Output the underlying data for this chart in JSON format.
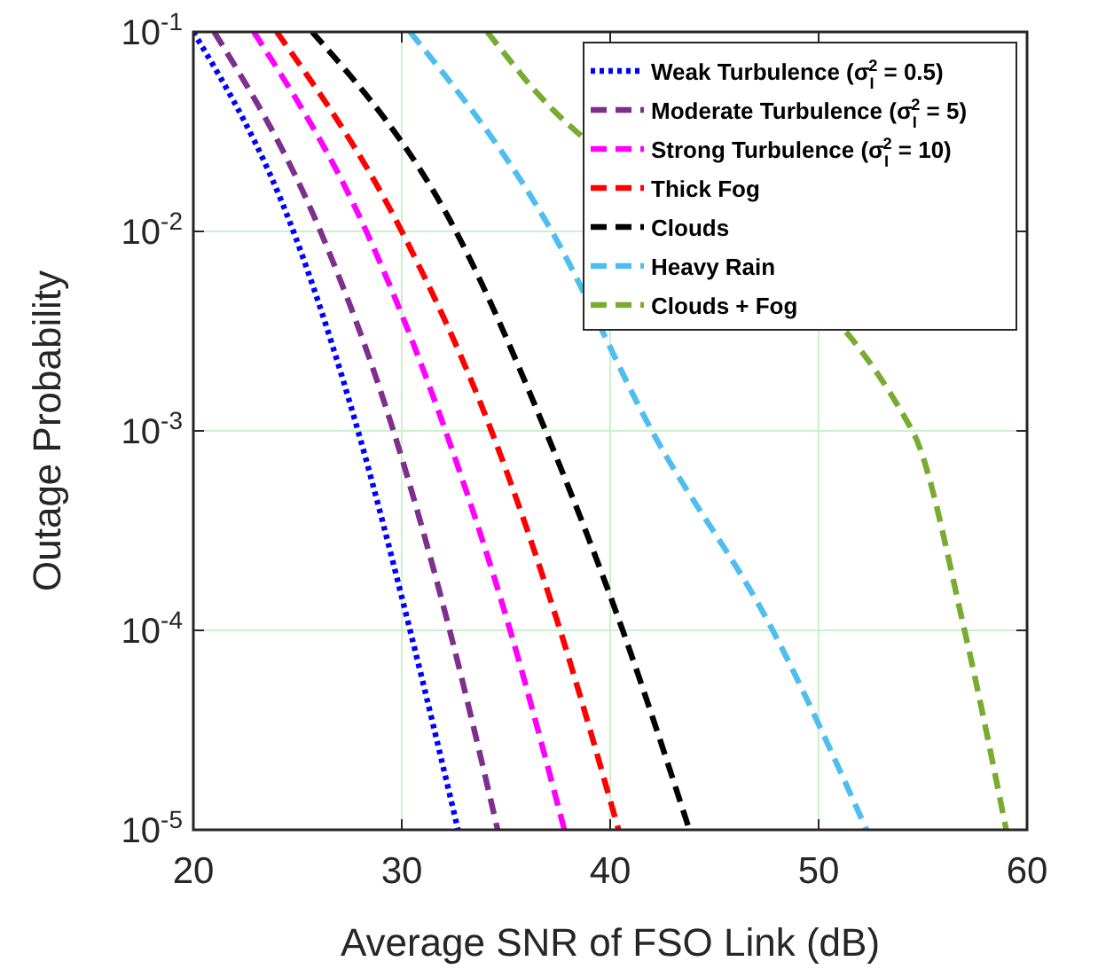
{
  "chart_data": {
    "type": "line",
    "xlabel": "Average SNR of FSO Link (dB)",
    "ylabel": "Outage Probability",
    "log": "y",
    "grid": true,
    "legend": "top right",
    "xlim": [
      20,
      60
    ],
    "xticks": [
      20,
      30,
      40,
      50,
      60
    ],
    "ylim": [
      1e-05,
      0.1
    ],
    "yticks": [
      {
        "value": 0.1,
        "label": "10$^{-1}$"
      },
      {
        "value": 0.01,
        "label": "10$^{-2}$"
      },
      {
        "value": 0.001,
        "label": "10$^{-3}$"
      },
      {
        "value": 0.0001,
        "label": "10$^{-4}$"
      },
      {
        "value": 1e-05,
        "label": "10$^{-5}$"
      }
    ],
    "series": [
      {
        "name": "Weak Turbulence (σ$_{I}$$^{2}$ = 0.5)",
        "color": "#0000ff",
        "line_style": "dotted",
        "x": [
          20,
          24.8,
          27.9,
          30.4,
          32.7
        ],
        "values": [
          0.1,
          0.01,
          0.001,
          0.0001,
          1e-05
        ]
      },
      {
        "name": "Moderate Turbulence (σ$_{I}$$^{2}$ = 5)",
        "color": "#7e2f8e",
        "line_style": "dashed",
        "x": [
          21,
          26.1,
          29.6,
          32.3,
          34.6
        ],
        "values": [
          0.1,
          0.01,
          0.001,
          0.0001,
          1e-05
        ]
      },
      {
        "name": "Strong Turbulence (σ$_{I}$$^{2}$ = 10)",
        "color": "#ff00ff",
        "line_style": "dashed",
        "x": [
          22.9,
          28.3,
          32.1,
          35.2,
          37.8
        ],
        "values": [
          0.1,
          0.01,
          0.001,
          0.0001,
          1e-05
        ]
      },
      {
        "name": "Thick Fog",
        "color": "#ff0000",
        "line_style": "dashed",
        "x": [
          24,
          30,
          34.3,
          37.6,
          40.4
        ],
        "values": [
          0.1,
          0.01,
          0.001,
          0.0001,
          1e-05
        ]
      },
      {
        "name": "Clouds",
        "color": "#000000",
        "line_style": "dashed",
        "x": [
          25.7,
          32.6,
          36.9,
          40.6,
          43.8
        ],
        "values": [
          0.1,
          0.01,
          0.001,
          0.0001,
          1e-05
        ]
      },
      {
        "name": "Heavy Rain",
        "color": "#4dbeee",
        "line_style": "dashed",
        "x": [
          30.4,
          37.2,
          42,
          47.8,
          52.3
        ],
        "values": [
          0.1,
          0.01,
          0.001,
          0.0001,
          1e-05
        ]
      },
      {
        "name": "Clouds + Fog",
        "color": "#77ac30",
        "line_style": "dashed",
        "x": [
          34.1,
          35.8,
          54.5,
          57,
          59
        ],
        "values": [
          0.1,
          0.06,
          0.001,
          0.0001,
          1e-05
        ]
      }
    ]
  }
}
